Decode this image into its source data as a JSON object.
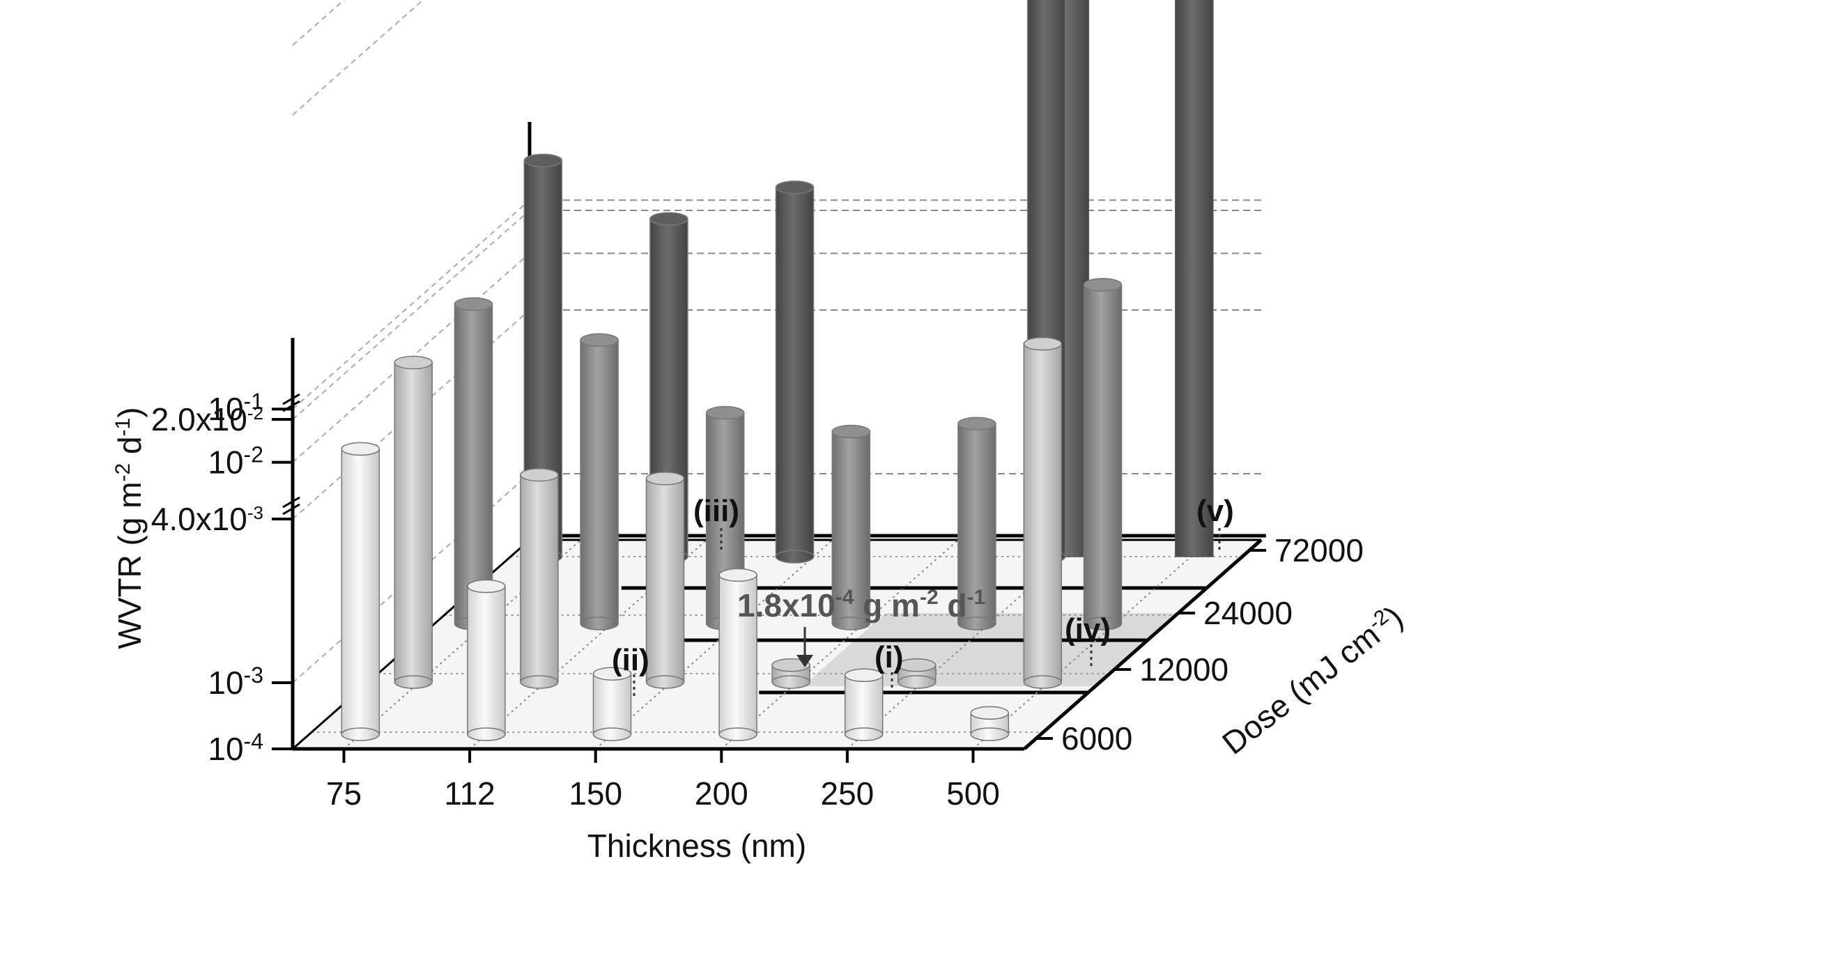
{
  "chart_data": {
    "type": "bar3d",
    "xlabel": "Thickness (nm)",
    "ylabel": "WVTR (g m-2 d-1)",
    "zlabel": "Dose (mJ cm-2)",
    "x_categories": [
      "75",
      "112",
      "150",
      "200",
      "250",
      "500"
    ],
    "z_categories": [
      "6000",
      "12000",
      "24000",
      "72000"
    ],
    "y_ticks": [
      {
        "base": "10",
        "exp": "-4"
      },
      {
        "base": "10",
        "exp": "-3"
      },
      {
        "base": "4.0x10",
        "exp": "-3"
      },
      {
        "base": "10",
        "exp": "-2"
      },
      {
        "base": "2.0x10",
        "exp": "-2"
      },
      {
        "base": "10",
        "exp": "-1"
      }
    ],
    "y_scale": "broken-log",
    "series": [
      {
        "name": "6000",
        "color": "#efefef",
        "values": [
          0.0098,
          0.002,
          0.00082,
          0.0022,
          0.00078,
          0.00021
        ]
      },
      {
        "name": "12000",
        "color": "#cfcfcf",
        "values": [
          0.017,
          0.0033,
          0.0032,
          0.00018,
          0.00018,
          0.078
        ]
      },
      {
        "name": "24000",
        "color": "#8f8f8f",
        "values": [
          0.017,
          0.0095,
          0.0034,
          0.0029,
          0.0031,
          0.085
        ]
      },
      {
        "name": "72000",
        "color": "#5e5e5e",
        "values": [
          0.12,
          0.072,
          0.11,
          null,
          0.21,
          null
        ]
      }
    ],
    "series_72000_extra": [
      {
        "x_between": "250-500",
        "value": 0.23
      },
      {
        "x_between": "500",
        "value": 0.21
      }
    ],
    "annotations": [
      {
        "label": "(i)",
        "text": "(i)"
      },
      {
        "label": "(ii)",
        "text": "(ii)"
      },
      {
        "label": "(iii)",
        "text": "(iii)"
      },
      {
        "label": "(iv)",
        "text": "(iv)"
      },
      {
        "label": "(v)",
        "text": "(v)"
      }
    ],
    "min_annotation": {
      "base": "1.8x10",
      "exp": "-4",
      "unit": "g m",
      "unit_exp": "-2",
      "unit2": "d",
      "unit2_exp": "-1"
    },
    "grid": true
  }
}
